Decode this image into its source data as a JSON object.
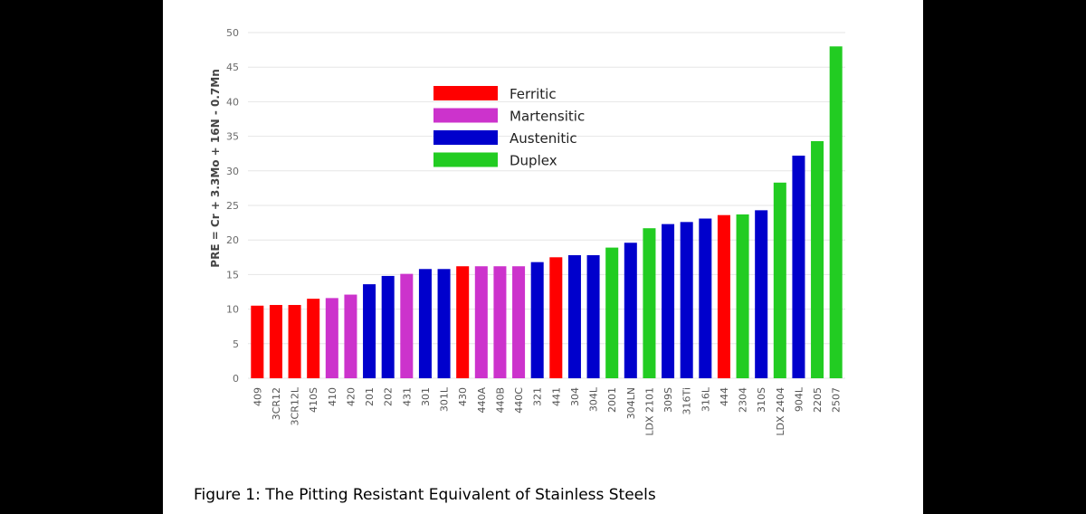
{
  "caption": "Figure 1: The Pitting Resistant Equivalent of Stainless Steels",
  "colors": {
    "Ferritic": "#ff0000",
    "Martensitic": "#cc33cc",
    "Austenitic": "#0000cc",
    "Duplex": "#22cc22",
    "gridline": "#e6e6e6",
    "background": "#000000",
    "panel": "#ffffff"
  },
  "chart_data": {
    "type": "bar",
    "ylabel": "PRE = Cr + 3.3Mo + 16N - 0.7Mn",
    "xlabel": "",
    "ylim": [
      0,
      50
    ],
    "yticks": [
      0,
      5,
      10,
      15,
      20,
      25,
      30,
      35,
      40,
      45,
      50
    ],
    "grid": "horizontal",
    "legend_position": "upper-left-center",
    "legend": [
      "Ferritic",
      "Martensitic",
      "Austenitic",
      "Duplex"
    ],
    "categories": [
      "409",
      "3CR12",
      "3CR12L",
      "410S",
      "410",
      "420",
      "201",
      "202",
      "431",
      "301",
      "301L",
      "430",
      "440A",
      "440B",
      "440C",
      "321",
      "441",
      "304",
      "304L",
      "2001",
      "304LN",
      "LDX 2101",
      "309S",
      "316Ti",
      "316L",
      "444",
      "2304",
      "310S",
      "LDX 2404",
      "904L",
      "2205",
      "2507"
    ],
    "values": [
      10.5,
      10.6,
      10.6,
      11.5,
      11.6,
      12.1,
      13.6,
      14.8,
      15.1,
      15.8,
      15.8,
      16.2,
      16.2,
      16.2,
      16.2,
      16.8,
      17.5,
      17.8,
      17.8,
      18.9,
      19.6,
      21.7,
      22.3,
      22.6,
      23.1,
      23.6,
      23.7,
      24.3,
      28.3,
      32.2,
      34.3,
      48.0
    ],
    "groups": [
      "Ferritic",
      "Ferritic",
      "Ferritic",
      "Ferritic",
      "Martensitic",
      "Martensitic",
      "Austenitic",
      "Austenitic",
      "Martensitic",
      "Austenitic",
      "Austenitic",
      "Ferritic",
      "Martensitic",
      "Martensitic",
      "Martensitic",
      "Austenitic",
      "Ferritic",
      "Austenitic",
      "Austenitic",
      "Duplex",
      "Austenitic",
      "Duplex",
      "Austenitic",
      "Austenitic",
      "Austenitic",
      "Ferritic",
      "Duplex",
      "Austenitic",
      "Duplex",
      "Austenitic",
      "Duplex",
      "Duplex"
    ]
  }
}
